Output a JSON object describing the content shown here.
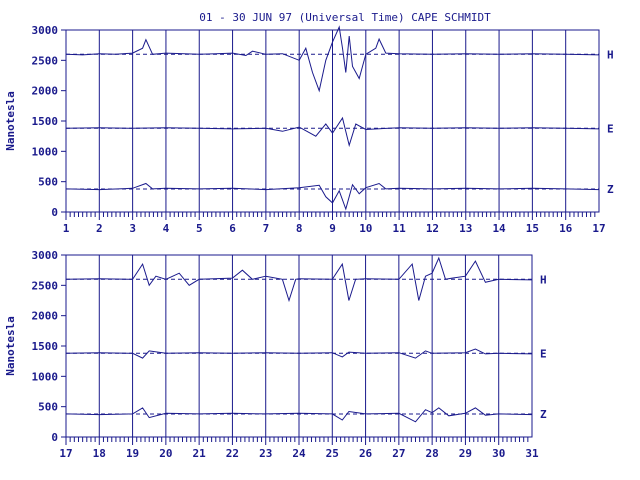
{
  "chart_data": [
    {
      "type": "line",
      "title": "01 - 30 JUN 97 (Universal Time) CAPE SCHMIDT",
      "ylabel": "Nanotesla",
      "ylim": [
        0,
        3000
      ],
      "yticks": [
        0,
        500,
        1000,
        1500,
        2000,
        2500,
        3000
      ],
      "xlim": [
        1,
        17
      ],
      "xticks": [
        "1",
        "2",
        "3",
        "4",
        "5",
        "6",
        "7",
        "8",
        "9",
        "10",
        "11",
        "12",
        "13",
        "14",
        "15",
        "16",
        "17"
      ],
      "grid": "vertical at day boundaries",
      "series": [
        {
          "name": "H",
          "baseline": 2600,
          "points": [
            [
              1,
              2600
            ],
            [
              1.5,
              2590
            ],
            [
              2,
              2610
            ],
            [
              2.5,
              2600
            ],
            [
              3,
              2620
            ],
            [
              3.3,
              2700
            ],
            [
              3.4,
              2840
            ],
            [
              3.6,
              2600
            ],
            [
              4,
              2620
            ],
            [
              5,
              2600
            ],
            [
              5.5,
              2610
            ],
            [
              6,
              2620
            ],
            [
              6.4,
              2580
            ],
            [
              6.6,
              2650
            ],
            [
              7,
              2600
            ],
            [
              7.5,
              2610
            ],
            [
              8,
              2500
            ],
            [
              8.2,
              2700
            ],
            [
              8.4,
              2300
            ],
            [
              8.6,
              2000
            ],
            [
              8.8,
              2500
            ],
            [
              9,
              2800
            ],
            [
              9.2,
              3050
            ],
            [
              9.3,
              2700
            ],
            [
              9.4,
              2300
            ],
            [
              9.5,
              2900
            ],
            [
              9.6,
              2400
            ],
            [
              9.8,
              2200
            ],
            [
              10,
              2600
            ],
            [
              10.3,
              2700
            ],
            [
              10.4,
              2850
            ],
            [
              10.6,
              2620
            ],
            [
              11,
              2610
            ],
            [
              12,
              2600
            ],
            [
              13,
              2610
            ],
            [
              14,
              2600
            ],
            [
              15,
              2610
            ],
            [
              16,
              2600
            ],
            [
              17,
              2590
            ]
          ]
        },
        {
          "name": "E",
          "baseline": 1380,
          "points": [
            [
              1,
              1380
            ],
            [
              2,
              1390
            ],
            [
              3,
              1380
            ],
            [
              4,
              1390
            ],
            [
              5,
              1380
            ],
            [
              6,
              1370
            ],
            [
              7,
              1380
            ],
            [
              7.5,
              1330
            ],
            [
              8,
              1400
            ],
            [
              8.5,
              1250
            ],
            [
              8.8,
              1450
            ],
            [
              9,
              1300
            ],
            [
              9.3,
              1550
            ],
            [
              9.5,
              1100
            ],
            [
              9.7,
              1450
            ],
            [
              10,
              1360
            ],
            [
              11,
              1390
            ],
            [
              12,
              1380
            ],
            [
              13,
              1390
            ],
            [
              14,
              1380
            ],
            [
              15,
              1390
            ],
            [
              16,
              1380
            ],
            [
              17,
              1370
            ]
          ]
        },
        {
          "name": "Z",
          "baseline": 380,
          "points": [
            [
              1,
              380
            ],
            [
              2,
              370
            ],
            [
              3,
              390
            ],
            [
              3.4,
              470
            ],
            [
              3.6,
              380
            ],
            [
              4,
              390
            ],
            [
              5,
              380
            ],
            [
              6,
              390
            ],
            [
              7,
              370
            ],
            [
              8,
              400
            ],
            [
              8.6,
              440
            ],
            [
              8.8,
              250
            ],
            [
              9,
              150
            ],
            [
              9.2,
              350
            ],
            [
              9.4,
              50
            ],
            [
              9.6,
              450
            ],
            [
              9.8,
              300
            ],
            [
              10,
              400
            ],
            [
              10.4,
              470
            ],
            [
              10.6,
              380
            ],
            [
              11,
              390
            ],
            [
              12,
              380
            ],
            [
              13,
              390
            ],
            [
              14,
              380
            ],
            [
              15,
              390
            ],
            [
              16,
              380
            ],
            [
              17,
              370
            ]
          ]
        }
      ]
    },
    {
      "type": "line",
      "title": "",
      "ylabel": "Nanotesla",
      "ylim": [
        0,
        3000
      ],
      "yticks": [
        0,
        500,
        1000,
        1500,
        2000,
        2500,
        3000
      ],
      "xlim": [
        17,
        31
      ],
      "xticks": [
        "17",
        "18",
        "19",
        "20",
        "21",
        "22",
        "23",
        "24",
        "25",
        "26",
        "27",
        "28",
        "29",
        "30",
        "31"
      ],
      "grid": "vertical at day boundaries",
      "series": [
        {
          "name": "H",
          "baseline": 2600,
          "points": [
            [
              17,
              2600
            ],
            [
              18,
              2610
            ],
            [
              19,
              2600
            ],
            [
              19.3,
              2850
            ],
            [
              19.5,
              2500
            ],
            [
              19.7,
              2650
            ],
            [
              20,
              2600
            ],
            [
              20.4,
              2700
            ],
            [
              20.7,
              2500
            ],
            [
              21,
              2600
            ],
            [
              22,
              2620
            ],
            [
              22.3,
              2750
            ],
            [
              22.6,
              2600
            ],
            [
              23,
              2650
            ],
            [
              23.5,
              2600
            ],
            [
              23.7,
              2250
            ],
            [
              23.9,
              2600
            ],
            [
              24,
              2610
            ],
            [
              25,
              2600
            ],
            [
              25.3,
              2850
            ],
            [
              25.5,
              2250
            ],
            [
              25.7,
              2600
            ],
            [
              26,
              2610
            ],
            [
              27,
              2600
            ],
            [
              27.4,
              2850
            ],
            [
              27.6,
              2250
            ],
            [
              27.8,
              2650
            ],
            [
              28,
              2700
            ],
            [
              28.2,
              2950
            ],
            [
              28.4,
              2600
            ],
            [
              28.6,
              2620
            ],
            [
              29,
              2650
            ],
            [
              29.3,
              2900
            ],
            [
              29.6,
              2550
            ],
            [
              30,
              2600
            ],
            [
              31,
              2590
            ]
          ]
        },
        {
          "name": "E",
          "baseline": 1380,
          "points": [
            [
              17,
              1380
            ],
            [
              18,
              1390
            ],
            [
              19,
              1380
            ],
            [
              19.3,
              1300
            ],
            [
              19.5,
              1420
            ],
            [
              20,
              1380
            ],
            [
              21,
              1390
            ],
            [
              22,
              1380
            ],
            [
              23,
              1390
            ],
            [
              24,
              1380
            ],
            [
              25,
              1390
            ],
            [
              25.3,
              1320
            ],
            [
              25.5,
              1400
            ],
            [
              26,
              1380
            ],
            [
              27,
              1390
            ],
            [
              27.5,
              1300
            ],
            [
              27.8,
              1420
            ],
            [
              28,
              1380
            ],
            [
              29,
              1390
            ],
            [
              29.3,
              1450
            ],
            [
              29.6,
              1370
            ],
            [
              30,
              1380
            ],
            [
              31,
              1370
            ]
          ]
        },
        {
          "name": "Z",
          "baseline": 380,
          "points": [
            [
              17,
              380
            ],
            [
              18,
              370
            ],
            [
              19,
              380
            ],
            [
              19.3,
              480
            ],
            [
              19.5,
              320
            ],
            [
              20,
              390
            ],
            [
              21,
              380
            ],
            [
              22,
              390
            ],
            [
              23,
              380
            ],
            [
              24,
              390
            ],
            [
              25,
              380
            ],
            [
              25.3,
              280
            ],
            [
              25.5,
              420
            ],
            [
              26,
              380
            ],
            [
              27,
              390
            ],
            [
              27.5,
              250
            ],
            [
              27.8,
              450
            ],
            [
              28,
              400
            ],
            [
              28.2,
              480
            ],
            [
              28.5,
              350
            ],
            [
              29,
              390
            ],
            [
              29.3,
              480
            ],
            [
              29.6,
              360
            ],
            [
              30,
              380
            ],
            [
              31,
              370
            ]
          ]
        }
      ]
    }
  ]
}
